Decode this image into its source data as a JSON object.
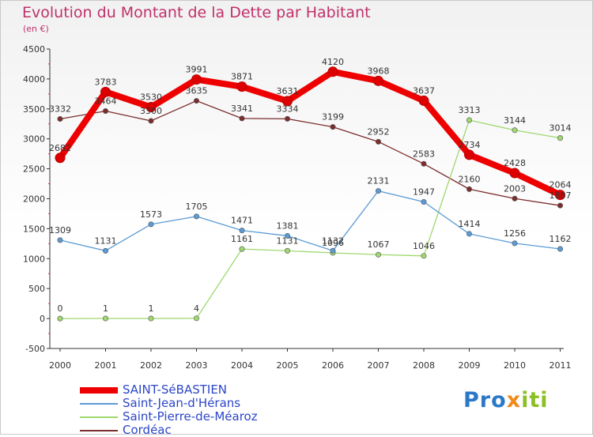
{
  "title": "Evolution du Montant de la Dette par Habitant",
  "subtitle": "(en €)",
  "logo": {
    "part1": "Pro",
    "part2": "x",
    "part3": "iti"
  },
  "chart_data": {
    "type": "line",
    "title": "Evolution du Montant de la Dette par Habitant",
    "subtitle": "(en €)",
    "xlabel": "",
    "ylabel": "",
    "categories": [
      "2000",
      "2001",
      "2002",
      "2003",
      "2004",
      "2005",
      "2006",
      "2007",
      "2008",
      "2009",
      "2010",
      "2011"
    ],
    "ylim": [
      -500,
      4500
    ],
    "yticks": [
      -500,
      0,
      500,
      1000,
      1500,
      2000,
      2500,
      3000,
      3500,
      4000,
      4500
    ],
    "legend_position": "bottom-left",
    "grid": false,
    "series": [
      {
        "name": "SAINT-SéBASTIEN",
        "color": "#ee0000",
        "values": [
          2682,
          3783,
          3530,
          3991,
          3871,
          3631,
          4120,
          3968,
          3637,
          2734,
          2428,
          2064
        ]
      },
      {
        "name": "Saint-Jean-d'Hérans",
        "color": "#5b9bd5",
        "values": [
          1309,
          1131,
          1573,
          1705,
          1471,
          1381,
          1132,
          2131,
          1947,
          1414,
          1256,
          1162
        ]
      },
      {
        "name": "Saint-Pierre-de-Méaroz",
        "color": "#9fd870",
        "values": [
          0,
          1,
          1,
          4,
          1161,
          1131,
          1096,
          1067,
          1046,
          3313,
          3144,
          3014
        ]
      },
      {
        "name": "Cordéac",
        "color": "#7b2d2d",
        "values": [
          3332,
          3464,
          3300,
          3635,
          3341,
          3334,
          3199,
          2952,
          2583,
          2160,
          2003,
          1887
        ]
      }
    ]
  }
}
